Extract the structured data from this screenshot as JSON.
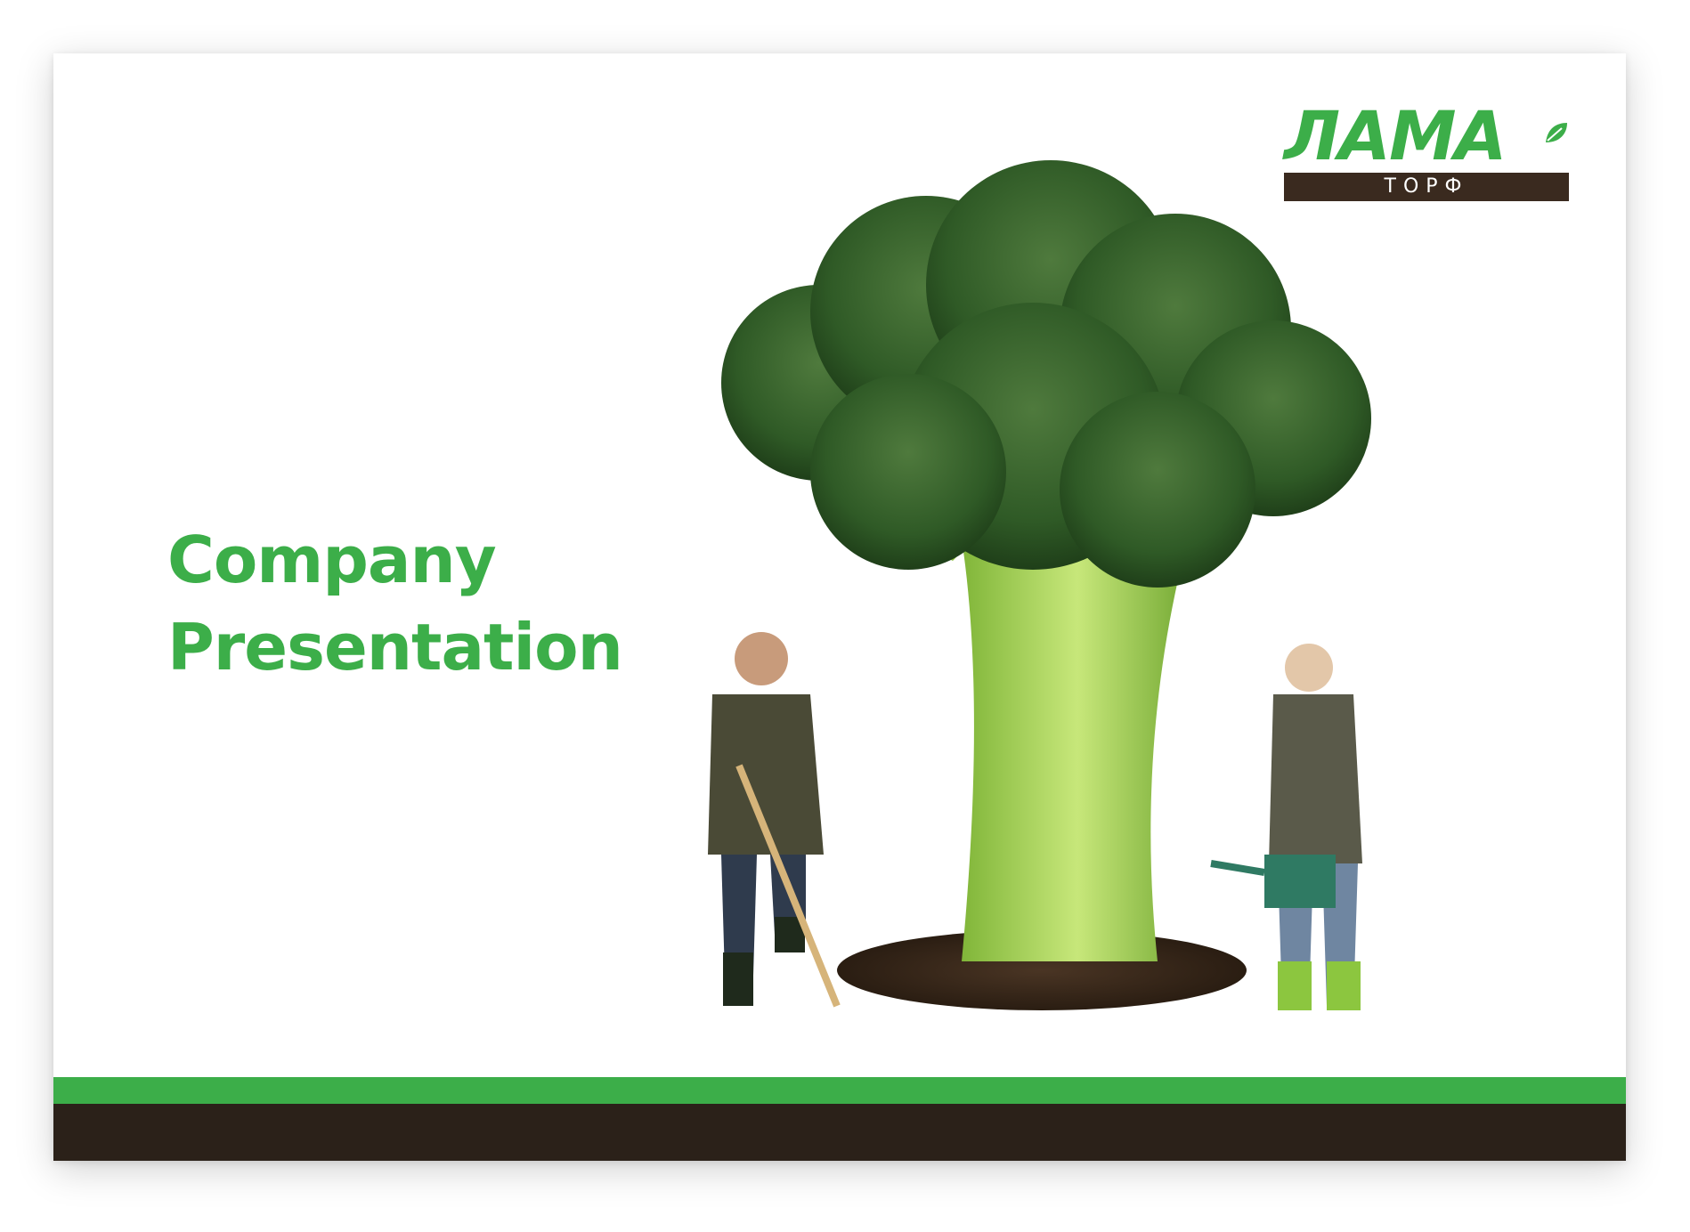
{
  "title": {
    "line1": "Company",
    "line2": "Presentation"
  },
  "logo": {
    "word": "ЛАМА",
    "subtitle": "ТОРФ"
  },
  "colors": {
    "brand_green": "#3cae49",
    "brand_brown": "#2b2119",
    "logo_bar": "#3a2a1f",
    "background": "#ffffff"
  },
  "illustration": {
    "subject": "giant-broccoli-with-gardeners"
  }
}
